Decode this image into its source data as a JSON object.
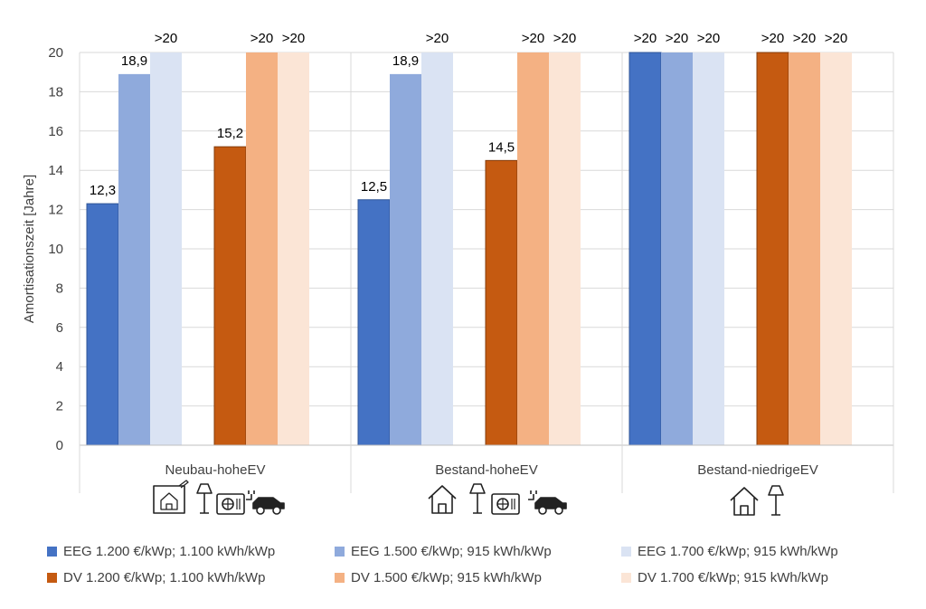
{
  "chart_data": {
    "type": "bar",
    "categories": [
      "Neubau-hoheEV",
      "Bestand-hoheEV",
      "Bestand-niedrigeEV"
    ],
    "ylabel": "Amortisationszeit [Jahre]",
    "ylim": [
      0,
      20
    ],
    "yticks": [
      "0",
      "2",
      "4",
      "6",
      "8",
      "10",
      "12",
      "14",
      "16",
      "18",
      "20"
    ],
    "grid": true,
    "legend_position": "bottom",
    "series": [
      {
        "name": "EEG 1.200 €/kWp; 1.100 kWh/kWp",
        "color": "#4472C4",
        "values": [
          12.3,
          12.5,
          20
        ],
        "labels": [
          "12,3",
          "12,5",
          ">20"
        ]
      },
      {
        "name": "EEG 1.500 €/kWp; 915 kWh/kWp",
        "color": "#8FAADC",
        "values": [
          18.9,
          18.9,
          20
        ],
        "labels": [
          "18,9",
          "18,9",
          ">20"
        ]
      },
      {
        "name": "EEG 1.700 €/kWp; 915 kWh/kWp",
        "color": "#DAE3F3",
        "values": [
          20,
          20,
          20
        ],
        "labels": [
          ">20",
          ">20",
          ">20"
        ]
      },
      {
        "name": "DV 1.200 €/kWp; 1.100 kWh/kWp",
        "color": "#C55A11",
        "values": [
          15.2,
          14.5,
          20
        ],
        "labels": [
          "15,2",
          "14,5",
          ">20"
        ]
      },
      {
        "name": "DV 1.500 €/kWp; 915 kWh/kWp",
        "color": "#F4B183",
        "values": [
          20,
          20,
          20
        ],
        "labels": [
          ">20",
          ">20",
          ">20"
        ]
      },
      {
        "name": "DV 1.700 €/kWp; 915 kWh/kWp",
        "color": "#FBE5D6",
        "values": [
          20,
          20,
          20
        ],
        "labels": [
          ">20",
          ">20",
          ">20"
        ]
      }
    ],
    "category_icons": [
      [
        "floorplan-house-icon",
        "floor-lamp-icon",
        "heat-pump-icon",
        "electric-car-icon"
      ],
      [
        "house-icon",
        "floor-lamp-icon",
        "heat-pump-icon",
        "electric-car-icon"
      ],
      [
        "house-icon",
        "floor-lamp-icon"
      ]
    ]
  }
}
